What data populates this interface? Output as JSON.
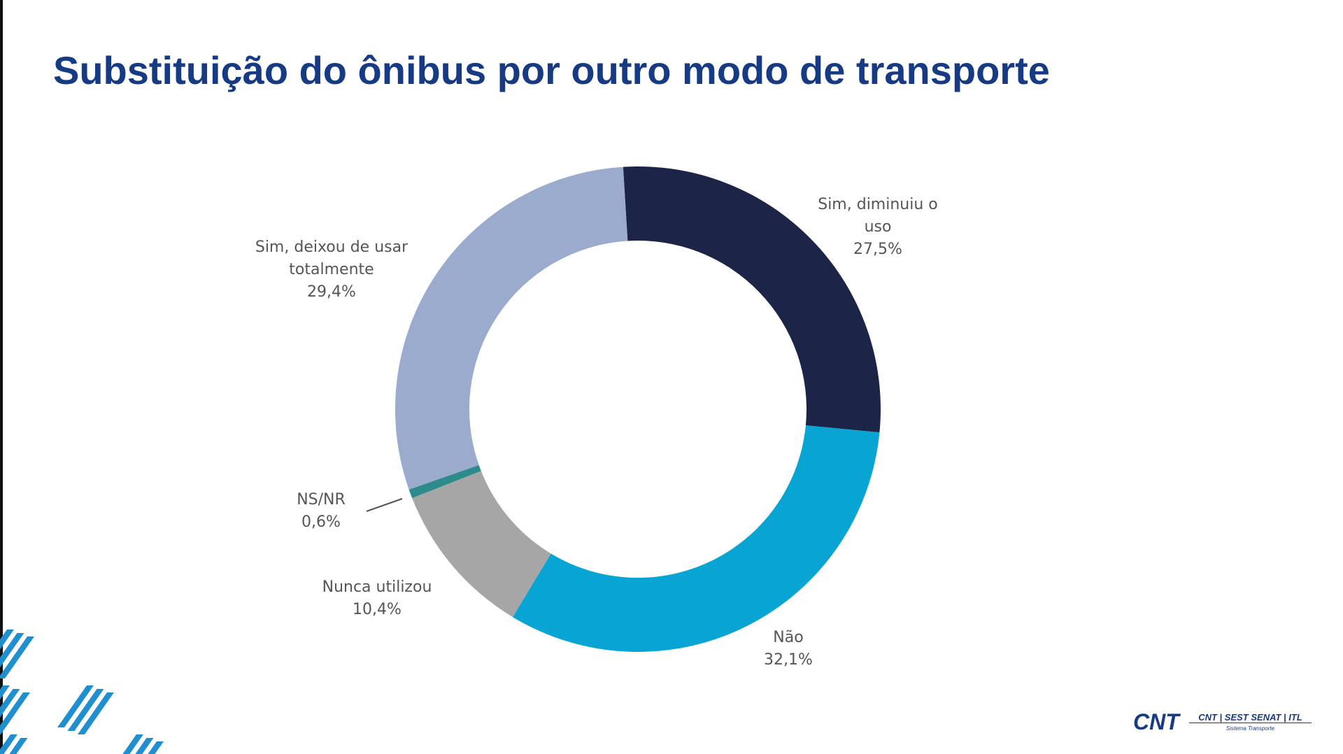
{
  "chart_data": {
    "type": "donut",
    "title": "Substituição do ônibus por outro modo de transporte",
    "categories": [
      "Sim, diminuiu o uso",
      "Não",
      "Nunca utilizou",
      "NS/NR",
      "Sim, deixou de usar totalmente"
    ],
    "values": [
      27.5,
      32.1,
      10.4,
      0.6,
      29.4
    ],
    "value_labels": [
      "27,5%",
      "32,1%",
      "10,4%",
      "0,6%",
      "29,4%"
    ],
    "colors": [
      "#1c2447",
      "#08a4d4",
      "#a6a6a6",
      "#2e8b8b",
      "#9aabce"
    ]
  },
  "logo": {
    "brand": "CNT",
    "partners": "CNT | SEST SENAT | ITL",
    "tagline": "Sistema Transporte"
  }
}
